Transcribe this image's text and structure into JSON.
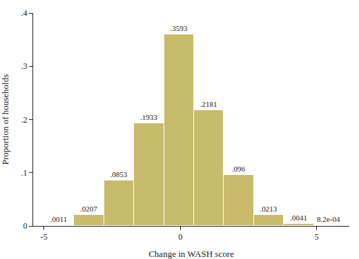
{
  "chart_data": {
    "type": "histogram",
    "x_label": "Change in WASH score",
    "y_label": "Proportion of households",
    "bins": [
      -5,
      -3.9,
      -2.8,
      -1.7,
      -0.6,
      0.5,
      1.6,
      2.7,
      3.8,
      4.9,
      6
    ],
    "values": [
      0.0011,
      0.0207,
      0.0853,
      0.1933,
      0.3593,
      0.2181,
      0.096,
      0.0213,
      0.0041,
      0.00082
    ],
    "value_labels": [
      ".0011",
      ".0207",
      ".0853",
      ".1933",
      ".3593",
      ".2181",
      ".096",
      ".0213",
      ".0041",
      "8.2e-04"
    ],
    "data_labels": true,
    "color": "#c8bb6b",
    "xlim": [
      -5.4,
      6.2
    ],
    "xticks": [
      -5,
      0,
      5
    ],
    "ylim": [
      0,
      0.4
    ],
    "yticks": [
      0,
      {
        "value": 0.1,
        "label": ".1"
      },
      {
        "value": 0.2,
        "label": ".2"
      },
      {
        "value": 0.3,
        "label": ".3"
      },
      {
        "value": 0.4,
        "label": ".4"
      }
    ],
    "grid": false
  }
}
